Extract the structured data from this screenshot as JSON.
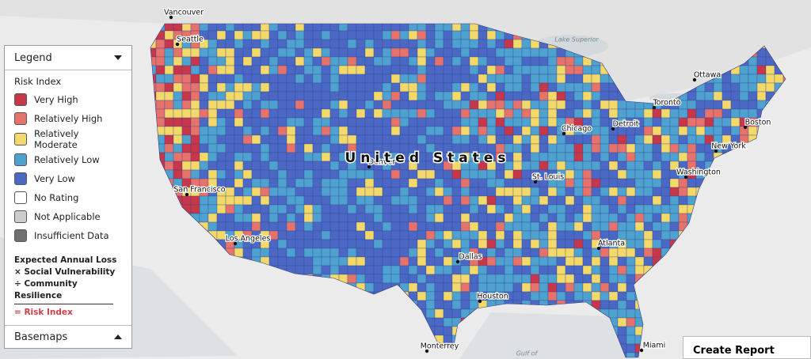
{
  "legend": {
    "title": "Legend",
    "subtitle": "Risk Index",
    "items": [
      {
        "label": "Very High",
        "color": "#c7374a"
      },
      {
        "label": "Relatively High",
        "color": "#e6736b"
      },
      {
        "label": "Relatively Moderate",
        "color": "#f3d86a"
      },
      {
        "label": "Relatively Low",
        "color": "#4fa2cf"
      },
      {
        "label": "Very Low",
        "color": "#4b68c4"
      },
      {
        "label": "No Rating",
        "color": "#ffffff"
      },
      {
        "label": "Not Applicable",
        "color": "#cccccc"
      },
      {
        "label": "Insufficient Data",
        "color": "#707070"
      }
    ],
    "formula": [
      "Expected Annual Loss",
      "× Social Vulnerability",
      "÷ Community Resilience"
    ],
    "result": "= Risk Index",
    "basemaps": "Basemaps"
  },
  "map": {
    "country": "United States",
    "places": [
      "Vancouver",
      "Seattle",
      "San Francisco",
      "Los Angeles",
      "Denver",
      "Dallas",
      "Houston",
      "St. Louis",
      "Chicago",
      "Detroit",
      "Toronto",
      "Ottawa",
      "Boston",
      "New York",
      "Washington",
      "Atlanta",
      "Miami",
      "Monterrey"
    ],
    "water": [
      "Lake Superior",
      "Gulf of"
    ]
  },
  "create_report": "Create Report"
}
